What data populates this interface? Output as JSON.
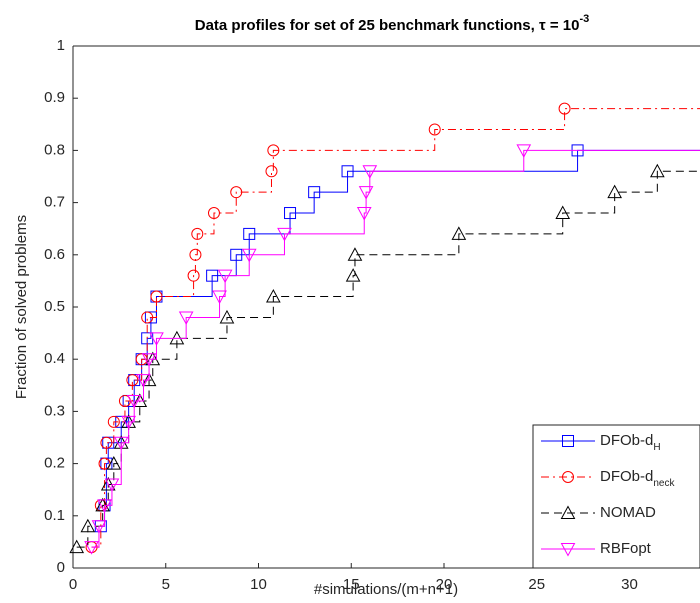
{
  "chart_data": {
    "type": "step",
    "title": "Data profiles for set of 25 benchmark functions, τ = 10",
    "title_superscript": "-3",
    "xlabel": "#simulations/(m+n+1)",
    "ylabel": "Fraction of solved problems",
    "xlim": [
      0,
      33.8
    ],
    "ylim": [
      0,
      1
    ],
    "xticks": [
      0,
      5,
      10,
      15,
      20,
      25,
      30
    ],
    "yticks": [
      0,
      0.1,
      0.2,
      0.3,
      0.4,
      0.5,
      0.6,
      0.7,
      0.8,
      0.9,
      1
    ],
    "legend": "lower right",
    "series": [
      {
        "name": "DFOb-d",
        "name_subscript": "H",
        "color": "#0000ff",
        "linestyle": "solid",
        "marker": "square",
        "x": [
          1.5,
          1.7,
          1.8,
          1.9,
          2.6,
          3.0,
          3.3,
          3.7,
          4.0,
          4.2,
          4.5,
          7.5,
          8.8,
          9.5,
          11.7,
          13.0,
          14.8,
          27.2
        ],
        "values": [
          0.08,
          0.12,
          0.2,
          0.24,
          0.28,
          0.32,
          0.36,
          0.4,
          0.44,
          0.48,
          0.52,
          0.56,
          0.6,
          0.64,
          0.68,
          0.72,
          0.76,
          0.8
        ]
      },
      {
        "name": "DFOb-d",
        "name_subscript": "neck",
        "color": "#ff0000",
        "linestyle": "dashdot",
        "marker": "circle",
        "x": [
          1.0,
          1.5,
          1.7,
          1.8,
          2.2,
          2.8,
          3.2,
          3.7,
          4.0,
          4.5,
          6.5,
          6.6,
          6.7,
          7.6,
          8.8,
          10.7,
          10.8,
          19.5,
          26.5
        ],
        "values": [
          0.04,
          0.12,
          0.2,
          0.24,
          0.28,
          0.32,
          0.36,
          0.4,
          0.48,
          0.52,
          0.56,
          0.6,
          0.64,
          0.68,
          0.72,
          0.76,
          0.8,
          0.84,
          0.88
        ]
      },
      {
        "name": "NOMAD",
        "color": "#000000",
        "linestyle": "dashed",
        "marker": "triangle-up",
        "x": [
          0.2,
          0.8,
          1.6,
          1.9,
          2.2,
          2.6,
          3.0,
          3.6,
          4.1,
          4.3,
          5.6,
          8.3,
          10.8,
          15.1,
          15.2,
          20.8,
          26.4,
          29.2,
          31.5
        ],
        "values": [
          0.04,
          0.08,
          0.12,
          0.16,
          0.2,
          0.24,
          0.28,
          0.32,
          0.36,
          0.4,
          0.44,
          0.48,
          0.52,
          0.56,
          0.6,
          0.64,
          0.68,
          0.72,
          0.76
        ]
      },
      {
        "name": "RBFopt",
        "color": "#ff00ff",
        "linestyle": "solid",
        "marker": "triangle-down",
        "x": [
          1.0,
          1.4,
          1.7,
          2.1,
          2.6,
          3.0,
          3.3,
          3.8,
          4.1,
          4.5,
          6.1,
          7.9,
          8.2,
          9.5,
          11.4,
          15.7,
          15.8,
          16.0,
          24.3
        ],
        "values": [
          0.04,
          0.08,
          0.12,
          0.16,
          0.24,
          0.28,
          0.32,
          0.36,
          0.4,
          0.44,
          0.48,
          0.52,
          0.56,
          0.6,
          0.64,
          0.68,
          0.72,
          0.76,
          0.8
        ]
      }
    ]
  }
}
